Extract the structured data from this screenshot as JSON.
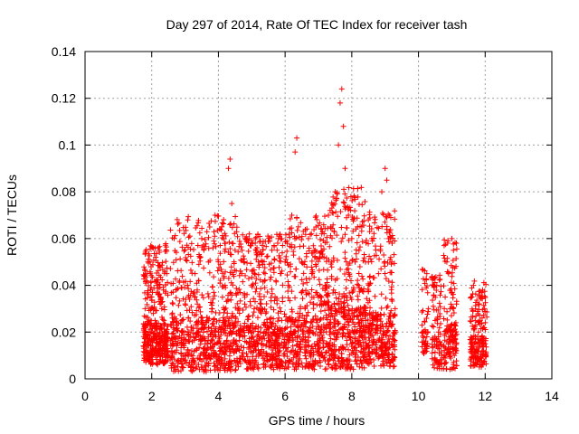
{
  "chart_data": {
    "type": "scatter",
    "title": "Day 297 of 2014, Rate Of TEC Index for receiver tash",
    "xlabel": "GPS time / hours",
    "ylabel": "ROTI / TECUs",
    "xlim": [
      0,
      14
    ],
    "ylim": [
      0,
      0.14
    ],
    "x_ticks": [
      0,
      2,
      4,
      6,
      8,
      10,
      12,
      14
    ],
    "x_tick_labels": [
      "0",
      "2",
      "4",
      "6",
      "8",
      "10",
      "12",
      "14"
    ],
    "y_ticks": [
      0,
      0.02,
      0.04,
      0.06,
      0.08,
      0.1,
      0.12,
      0.14
    ],
    "y_tick_labels": [
      "0",
      "0.02",
      "0.04",
      "0.06",
      "0.08",
      "0.1",
      "0.12",
      "0.14"
    ],
    "grid": true,
    "marker": "+",
    "colors": {
      "points": "#ff0000",
      "axes": "#000000",
      "grid": "#a0a0a0"
    },
    "series": [
      {
        "name": "tash",
        "x": [
          1.8,
          1.85,
          1.9,
          1.95,
          2.0,
          2.05,
          2.1,
          2.15,
          2.2,
          2.25,
          2.3,
          2.35,
          2.4,
          2.45,
          2.5,
          2.6,
          2.7,
          2.8,
          2.9,
          3.0,
          3.1,
          3.2,
          3.3,
          3.4,
          3.5,
          3.6,
          3.7,
          3.8,
          3.9,
          4.0,
          4.1,
          4.2,
          4.3,
          4.35,
          4.4,
          4.5,
          4.6,
          4.7,
          4.8,
          4.9,
          5.0,
          5.1,
          5.2,
          5.3,
          5.4,
          5.5,
          5.6,
          5.7,
          5.8,
          5.9,
          6.0,
          6.1,
          6.2,
          6.3,
          6.35,
          6.4,
          6.5,
          6.6,
          6.7,
          6.8,
          6.9,
          7.0,
          7.1,
          7.2,
          7.3,
          7.4,
          7.5,
          7.6,
          7.65,
          7.7,
          7.75,
          7.8,
          7.9,
          8.0,
          8.1,
          8.2,
          8.3,
          8.4,
          8.5,
          8.6,
          8.7,
          8.8,
          8.9,
          9.0,
          9.05,
          9.1,
          9.2,
          9.3,
          10.2,
          10.25,
          10.3,
          10.5,
          10.55,
          10.6,
          10.8,
          10.85,
          10.9,
          10.95,
          11.0,
          11.05,
          11.1,
          11.6,
          11.65,
          11.7,
          11.75,
          11.8,
          11.85,
          11.9,
          11.95,
          12.0
        ],
        "y": [
          0.03,
          0.045,
          0.02,
          0.05,
          0.035,
          0.056,
          0.025,
          0.04,
          0.015,
          0.048,
          0.03,
          0.038,
          0.02,
          0.045,
          0.01,
          0.012,
          0.018,
          0.008,
          0.025,
          0.01,
          0.035,
          0.012,
          0.045,
          0.02,
          0.06,
          0.015,
          0.05,
          0.03,
          0.07,
          0.02,
          0.065,
          0.04,
          0.09,
          0.094,
          0.075,
          0.055,
          0.03,
          0.045,
          0.06,
          0.02,
          0.04,
          0.015,
          0.05,
          0.03,
          0.045,
          0.02,
          0.055,
          0.035,
          0.06,
          0.025,
          0.05,
          0.04,
          0.07,
          0.097,
          0.103,
          0.065,
          0.05,
          0.03,
          0.06,
          0.045,
          0.055,
          0.035,
          0.062,
          0.04,
          0.07,
          0.05,
          0.08,
          0.1,
          0.118,
          0.124,
          0.108,
          0.09,
          0.07,
          0.06,
          0.05,
          0.04,
          0.065,
          0.03,
          0.05,
          0.06,
          0.02,
          0.045,
          0.08,
          0.09,
          0.085,
          0.06,
          0.05,
          0.03,
          0.02,
          0.045,
          0.03,
          0.025,
          0.04,
          0.02,
          0.035,
          0.05,
          0.045,
          0.03,
          0.06,
          0.055,
          0.02,
          0.035,
          0.04,
          0.025,
          0.015,
          0.02,
          0.025,
          0.018,
          0.022,
          0.015
        ],
        "cloud": [
          {
            "x_range": [
              1.75,
              2.5
            ],
            "y_range": [
              0.006,
              0.058
            ],
            "count": 420
          },
          {
            "x_range": [
              2.55,
              4.6
            ],
            "y_range": [
              0.003,
              0.07
            ],
            "count": 700
          },
          {
            "x_range": [
              4.6,
              6.1
            ],
            "y_range": [
              0.004,
              0.062
            ],
            "count": 520
          },
          {
            "x_range": [
              6.1,
              7.3
            ],
            "y_range": [
              0.004,
              0.07
            ],
            "count": 420
          },
          {
            "x_range": [
              7.3,
              8.4
            ],
            "y_range": [
              0.004,
              0.082
            ],
            "count": 460
          },
          {
            "x_range": [
              8.4,
              9.3
            ],
            "y_range": [
              0.005,
              0.072
            ],
            "count": 340
          },
          {
            "x_range": [
              10.1,
              10.3
            ],
            "y_range": [
              0.01,
              0.047
            ],
            "count": 50
          },
          {
            "x_range": [
              10.4,
              10.7
            ],
            "y_range": [
              0.004,
              0.045
            ],
            "count": 90
          },
          {
            "x_range": [
              10.75,
              11.15
            ],
            "y_range": [
              0.004,
              0.06
            ],
            "count": 150
          },
          {
            "x_range": [
              11.55,
              12.05
            ],
            "y_range": [
              0.005,
              0.042
            ],
            "count": 190
          }
        ]
      }
    ]
  }
}
